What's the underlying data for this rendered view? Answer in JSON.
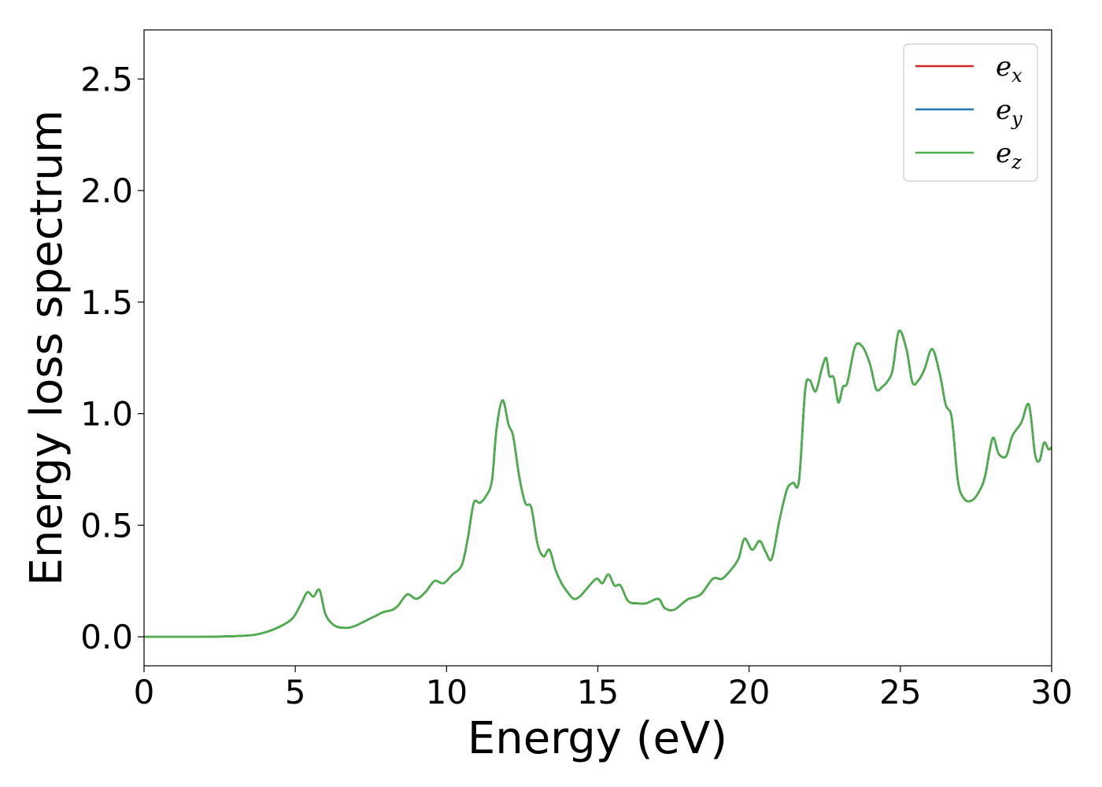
{
  "chart_data": {
    "type": "line",
    "title": "",
    "xlabel": "Energy (eV)",
    "ylabel": "Energy loss spectrum",
    "xlim": [
      0,
      30
    ],
    "ylim": [
      -0.13,
      2.72
    ],
    "xticks": [
      "0",
      "5",
      "10",
      "15",
      "20",
      "25",
      "30"
    ],
    "yticks": [
      "0.0",
      "0.5",
      "1.0",
      "1.5",
      "2.0",
      "2.5"
    ],
    "grid": false,
    "legend": "top-right",
    "colors": {
      "ex": "#d62728",
      "ey": "#1f77b4",
      "ez": "#4daf4a"
    },
    "legend_entries": [
      {
        "base": "e",
        "sub": "x"
      },
      {
        "base": "e",
        "sub": "y"
      },
      {
        "base": "e",
        "sub": "z"
      }
    ],
    "x": [
      0,
      1,
      2,
      3,
      3.6,
      4.0,
      4.4,
      4.8,
      5.0,
      5.2,
      5.4,
      5.6,
      5.8,
      6.0,
      6.3,
      6.7,
      7.0,
      7.3,
      7.6,
      7.9,
      8.2,
      8.4,
      8.7,
      9.0,
      9.3,
      9.6,
      9.9,
      10.2,
      10.5,
      10.7,
      10.9,
      11.1,
      11.3,
      11.5,
      11.65,
      11.85,
      12.05,
      12.2,
      12.4,
      12.6,
      12.8,
      13.0,
      13.2,
      13.4,
      13.6,
      13.8,
      14.0,
      14.2,
      14.4,
      14.6,
      14.95,
      15.15,
      15.35,
      15.55,
      15.75,
      16.0,
      16.3,
      16.6,
      17.0,
      17.2,
      17.5,
      17.8,
      18.0,
      18.4,
      18.8,
      19.1,
      19.4,
      19.65,
      19.85,
      20.1,
      20.35,
      20.55,
      20.75,
      21.0,
      21.25,
      21.45,
      21.65,
      21.85,
      22.0,
      22.2,
      22.4,
      22.55,
      22.65,
      22.8,
      22.95,
      23.1,
      23.25,
      23.5,
      23.75,
      24.0,
      24.2,
      24.4,
      24.6,
      24.75,
      24.95,
      25.2,
      25.4,
      25.6,
      25.8,
      26.05,
      26.3,
      26.5,
      26.7,
      26.9,
      27.1,
      27.35,
      27.6,
      27.8,
      28.05,
      28.25,
      28.5,
      28.7,
      29.0,
      29.25,
      29.45,
      29.6,
      29.75,
      29.9,
      30.0
    ],
    "series": [
      {
        "name": "e_x",
        "values": [
          0.0,
          0.0,
          0.0,
          0.003,
          0.008,
          0.02,
          0.04,
          0.07,
          0.1,
          0.15,
          0.2,
          0.18,
          0.21,
          0.1,
          0.05,
          0.04,
          0.05,
          0.07,
          0.09,
          0.11,
          0.12,
          0.14,
          0.19,
          0.17,
          0.2,
          0.25,
          0.24,
          0.28,
          0.32,
          0.44,
          0.6,
          0.6,
          0.63,
          0.7,
          0.93,
          1.06,
          0.95,
          0.9,
          0.72,
          0.6,
          0.58,
          0.42,
          0.36,
          0.39,
          0.3,
          0.24,
          0.2,
          0.17,
          0.18,
          0.21,
          0.26,
          0.24,
          0.28,
          0.23,
          0.23,
          0.16,
          0.15,
          0.15,
          0.17,
          0.13,
          0.12,
          0.15,
          0.17,
          0.19,
          0.26,
          0.26,
          0.3,
          0.35,
          0.44,
          0.39,
          0.43,
          0.38,
          0.35,
          0.52,
          0.66,
          0.69,
          0.7,
          1.1,
          1.15,
          1.1,
          1.2,
          1.25,
          1.17,
          1.16,
          1.05,
          1.12,
          1.14,
          1.3,
          1.3,
          1.22,
          1.11,
          1.12,
          1.15,
          1.2,
          1.37,
          1.29,
          1.14,
          1.15,
          1.2,
          1.29,
          1.18,
          1.04,
          0.98,
          0.7,
          0.62,
          0.61,
          0.65,
          0.72,
          0.89,
          0.82,
          0.81,
          0.9,
          0.96,
          1.04,
          0.82,
          0.79,
          0.87,
          0.84,
          0.85
        ]
      },
      {
        "name": "e_y",
        "values": [
          0.0,
          0.0,
          0.0,
          0.003,
          0.008,
          0.02,
          0.04,
          0.07,
          0.1,
          0.15,
          0.2,
          0.18,
          0.21,
          0.1,
          0.05,
          0.04,
          0.05,
          0.07,
          0.09,
          0.11,
          0.12,
          0.14,
          0.19,
          0.17,
          0.2,
          0.25,
          0.24,
          0.28,
          0.32,
          0.44,
          0.6,
          0.6,
          0.63,
          0.7,
          0.93,
          1.06,
          0.95,
          0.9,
          0.72,
          0.6,
          0.58,
          0.42,
          0.36,
          0.39,
          0.3,
          0.24,
          0.2,
          0.17,
          0.18,
          0.21,
          0.26,
          0.24,
          0.28,
          0.23,
          0.23,
          0.16,
          0.15,
          0.15,
          0.17,
          0.13,
          0.12,
          0.15,
          0.17,
          0.19,
          0.26,
          0.26,
          0.3,
          0.35,
          0.44,
          0.39,
          0.43,
          0.38,
          0.35,
          0.52,
          0.66,
          0.69,
          0.7,
          1.1,
          1.15,
          1.1,
          1.2,
          1.25,
          1.17,
          1.16,
          1.05,
          1.12,
          1.14,
          1.3,
          1.3,
          1.22,
          1.11,
          1.12,
          1.15,
          1.2,
          1.37,
          1.29,
          1.14,
          1.15,
          1.2,
          1.29,
          1.18,
          1.04,
          0.98,
          0.7,
          0.62,
          0.61,
          0.65,
          0.72,
          0.89,
          0.82,
          0.81,
          0.9,
          0.96,
          1.04,
          0.82,
          0.79,
          0.87,
          0.84,
          0.85
        ]
      },
      {
        "name": "e_z",
        "values": [
          0.0,
          0.0,
          0.0,
          0.003,
          0.008,
          0.02,
          0.04,
          0.07,
          0.1,
          0.15,
          0.2,
          0.18,
          0.21,
          0.1,
          0.05,
          0.04,
          0.05,
          0.07,
          0.09,
          0.11,
          0.12,
          0.14,
          0.19,
          0.17,
          0.2,
          0.25,
          0.24,
          0.28,
          0.32,
          0.44,
          0.6,
          0.6,
          0.63,
          0.7,
          0.93,
          1.06,
          0.95,
          0.9,
          0.72,
          0.6,
          0.58,
          0.42,
          0.36,
          0.39,
          0.3,
          0.24,
          0.2,
          0.17,
          0.18,
          0.21,
          0.26,
          0.24,
          0.28,
          0.23,
          0.23,
          0.16,
          0.15,
          0.15,
          0.17,
          0.13,
          0.12,
          0.15,
          0.17,
          0.19,
          0.26,
          0.26,
          0.3,
          0.35,
          0.44,
          0.39,
          0.43,
          0.38,
          0.35,
          0.52,
          0.66,
          0.69,
          0.7,
          1.1,
          1.15,
          1.1,
          1.2,
          1.25,
          1.17,
          1.16,
          1.05,
          1.12,
          1.14,
          1.3,
          1.3,
          1.22,
          1.11,
          1.12,
          1.15,
          1.2,
          1.37,
          1.29,
          1.14,
          1.15,
          1.2,
          1.29,
          1.18,
          1.04,
          0.98,
          0.7,
          0.62,
          0.61,
          0.65,
          0.72,
          0.89,
          0.82,
          0.81,
          0.9,
          0.96,
          1.04,
          0.82,
          0.79,
          0.87,
          0.84,
          0.85
        ]
      }
    ]
  }
}
